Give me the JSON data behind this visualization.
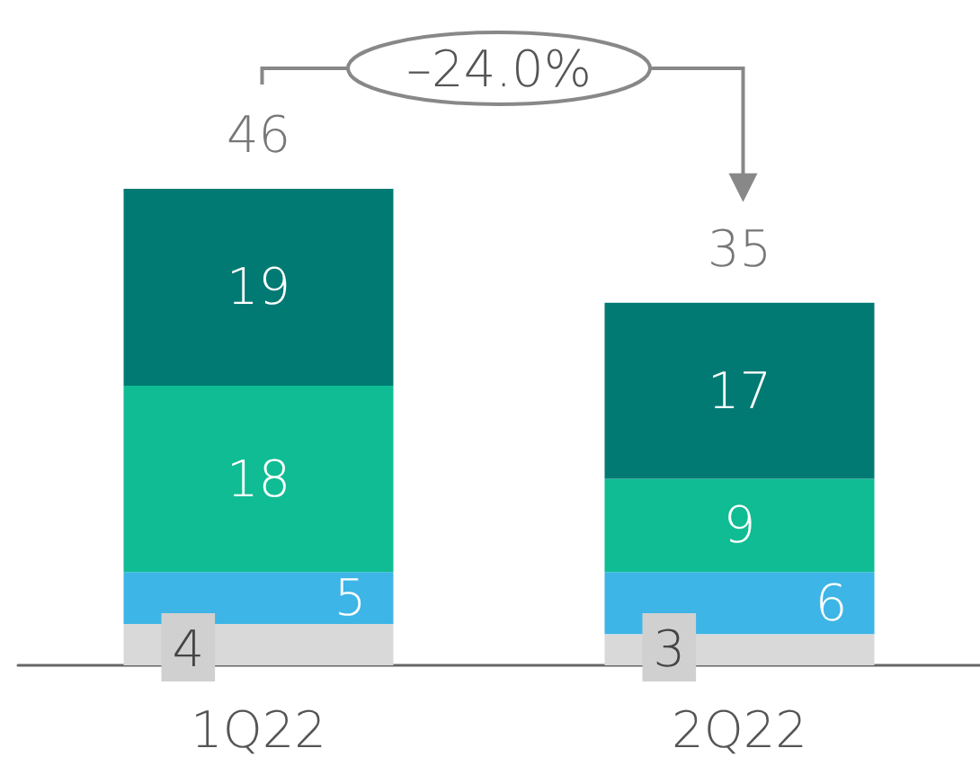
{
  "chart_data": {
    "type": "bar",
    "stacked": true,
    "categories": [
      "1Q22",
      "2Q22"
    ],
    "series": [
      {
        "color": "#d9d9d9",
        "values": [
          4,
          3
        ]
      },
      {
        "color": "#3db5e6",
        "values": [
          5,
          6
        ]
      },
      {
        "color": "#0fbc94",
        "values": [
          18,
          9
        ]
      },
      {
        "color": "#007a73",
        "values": [
          19,
          17
        ]
      }
    ],
    "data_labels": true,
    "totals": [
      "46",
      "35"
    ],
    "annotations": [
      "–24.0%"
    ]
  }
}
